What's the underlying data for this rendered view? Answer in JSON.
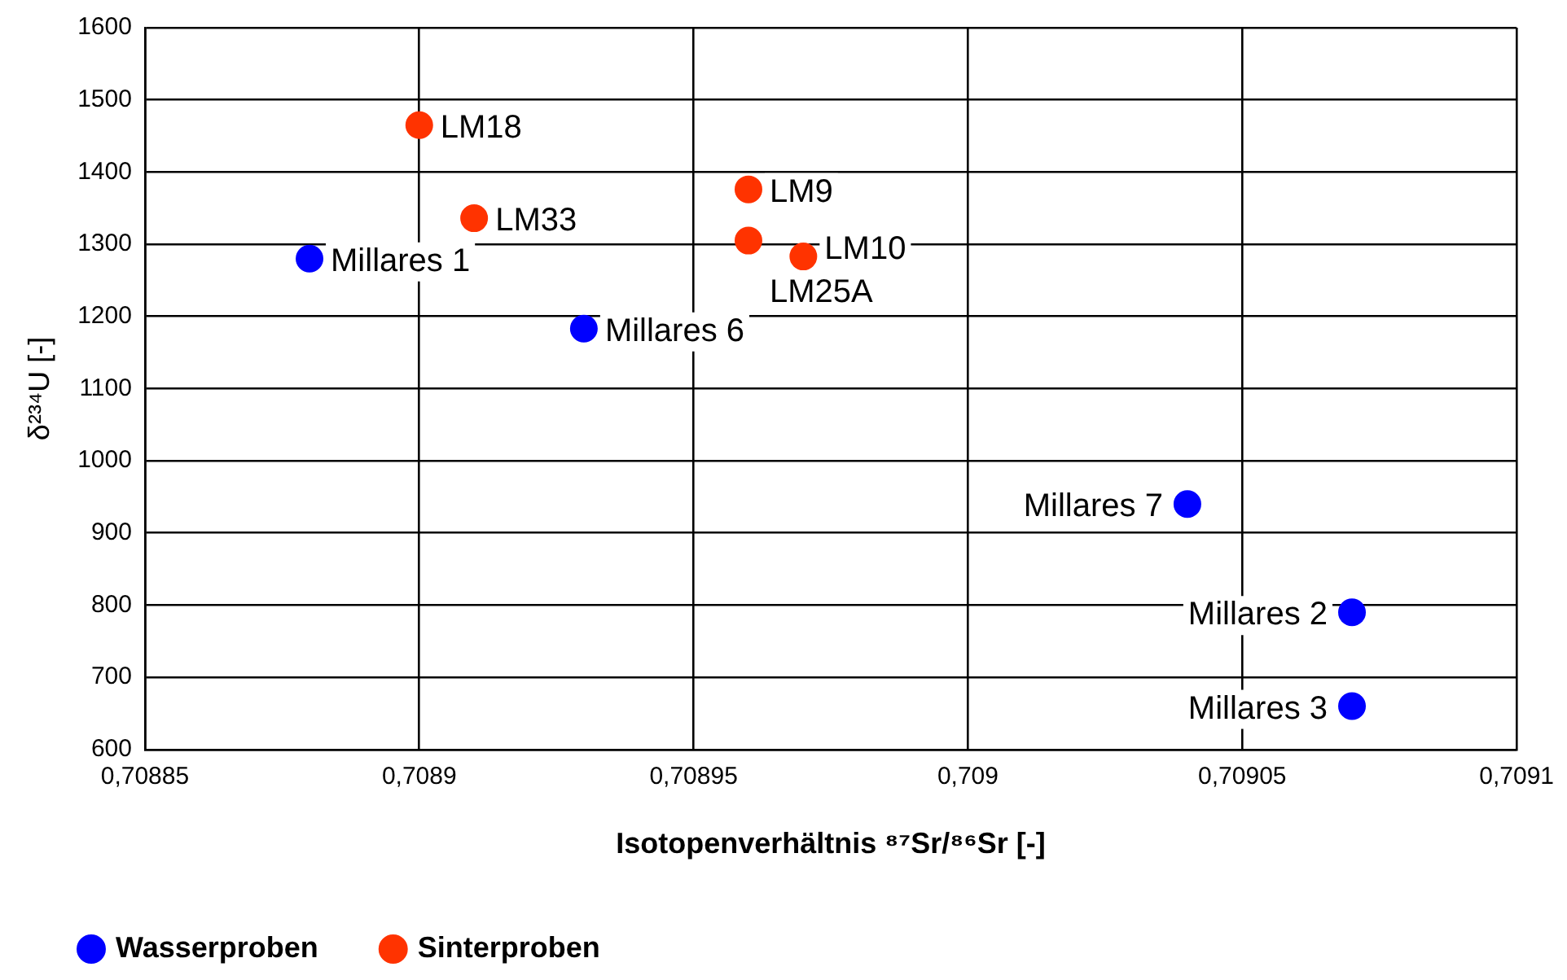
{
  "chart_data": {
    "type": "scatter",
    "xlabel": "Isotopenverhältnis ⁸⁷Sr/⁸⁶Sr [-]",
    "ylabel": "δ²³⁴U [-]",
    "xlim": [
      0.70885,
      0.7091
    ],
    "xticks": [
      {
        "value": 0.70885,
        "label": "0,70885"
      },
      {
        "value": 0.7089,
        "label": "0,7089"
      },
      {
        "value": 0.70895,
        "label": "0,70895"
      },
      {
        "value": 0.709,
        "label": "0,709"
      },
      {
        "value": 0.70905,
        "label": "0,70905"
      },
      {
        "value": 0.7091,
        "label": "0,7091"
      }
    ],
    "ylim": [
      600,
      1600
    ],
    "yticks": [
      600,
      700,
      800,
      900,
      1000,
      1100,
      1200,
      1300,
      1400,
      1500,
      1600
    ],
    "grid": true,
    "legend": "bottom",
    "marker": "circle",
    "series": [
      {
        "name": "Wasserproben",
        "color": "#0000ff",
        "x": [
          0.70888,
          0.70893,
          0.70904,
          0.70907,
          0.70907
        ],
        "values": [
          1280,
          1183,
          940,
          790,
          660
        ],
        "value_labels": [
          "Millares 1",
          "Millares 6",
          "Millares 7",
          "Millares 2",
          "Millares 3"
        ]
      },
      {
        "name": "Sinterproben",
        "color": "#ff3300",
        "x": [
          0.7089,
          0.70891,
          0.70896,
          0.70896,
          0.70897
        ],
        "values": [
          1465,
          1336,
          1376,
          1305,
          1283
        ],
        "value_labels": [
          "LM18",
          "LM33",
          "LM9",
          "LM25A",
          "LM10"
        ]
      }
    ]
  }
}
